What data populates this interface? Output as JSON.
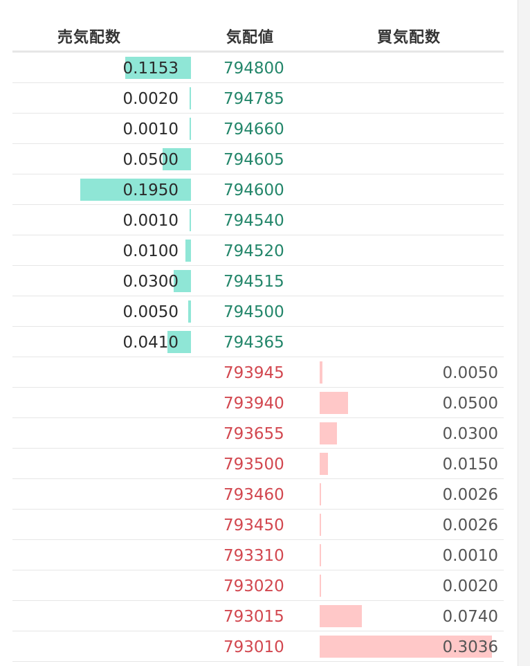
{
  "header": {
    "ask_label": "売気配数",
    "price_label": "気配値",
    "bid_label": "買気配数"
  },
  "asks": [
    {
      "qty": "0.1153",
      "price": "794800",
      "depth": 0.1153
    },
    {
      "qty": "0.0020",
      "price": "794785",
      "depth": 0.002
    },
    {
      "qty": "0.0010",
      "price": "794660",
      "depth": 0.001
    },
    {
      "qty": "0.0500",
      "price": "794605",
      "depth": 0.05
    },
    {
      "qty": "0.1950",
      "price": "794600",
      "depth": 0.195
    },
    {
      "qty": "0.0010",
      "price": "794540",
      "depth": 0.001
    },
    {
      "qty": "0.0100",
      "price": "794520",
      "depth": 0.01
    },
    {
      "qty": "0.0300",
      "price": "794515",
      "depth": 0.03
    },
    {
      "qty": "0.0050",
      "price": "794500",
      "depth": 0.005
    },
    {
      "qty": "0.0410",
      "price": "794365",
      "depth": 0.041
    }
  ],
  "bids": [
    {
      "qty": "0.0050",
      "price": "793945",
      "depth": 0.005
    },
    {
      "qty": "0.0500",
      "price": "793940",
      "depth": 0.05
    },
    {
      "qty": "0.0300",
      "price": "793655",
      "depth": 0.03
    },
    {
      "qty": "0.0150",
      "price": "793500",
      "depth": 0.015
    },
    {
      "qty": "0.0026",
      "price": "793460",
      "depth": 0.0026
    },
    {
      "qty": "0.0026",
      "price": "793450",
      "depth": 0.0026
    },
    {
      "qty": "0.0010",
      "price": "793310",
      "depth": 0.001
    },
    {
      "qty": "0.0020",
      "price": "793020",
      "depth": 0.002
    },
    {
      "qty": "0.0740",
      "price": "793015",
      "depth": 0.074
    },
    {
      "qty": "0.3036",
      "price": "793010",
      "depth": 0.3036
    }
  ],
  "colors": {
    "ask_price": "#23866a",
    "bid_price": "#d2474f",
    "ask_bar": "#8fe6d6",
    "bid_bar": "#ffc8c8"
  }
}
